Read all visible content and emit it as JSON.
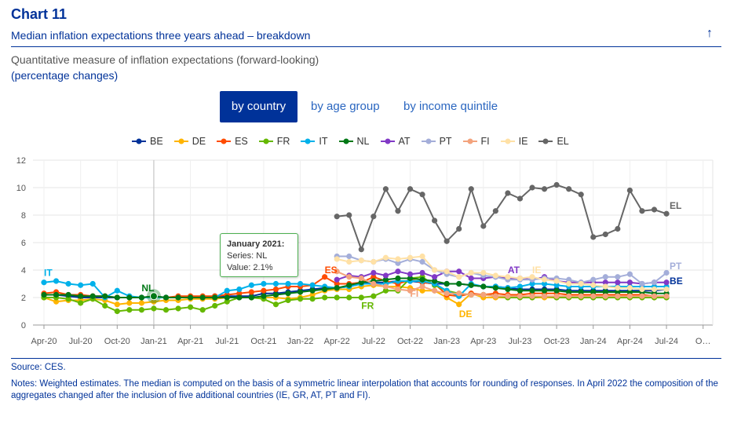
{
  "header": {
    "chart_number": "Chart 11",
    "title": "Median inflation expectations three years ahead – breakdown",
    "collapse_icon": "arrow-up-icon",
    "subtitle_line1": "Quantitative measure of inflation expectations (forward-looking)",
    "subtitle_line2": "(percentage changes)"
  },
  "tabs": [
    {
      "label": "by country",
      "active": true
    },
    {
      "label": "by age group",
      "active": false
    },
    {
      "label": "by income quintile",
      "active": false
    }
  ],
  "tooltip": {
    "title": "January 2021:",
    "series_line": "Series: NL",
    "value_line": "Value: 2.1%"
  },
  "footer": {
    "source": "Source: CES.",
    "notes": "Notes: Weighted estimates. The median is computed on the basis of a symmetric linear interpolation that accounts for rounding of responses. In April 2022 the composition of the aggregates changed after the inclusion of five additional countries (IE, GR, AT, PT and FI)."
  },
  "chart_data": {
    "type": "line",
    "ylim": [
      0,
      12
    ],
    "yticks": [
      "0",
      "2",
      "4",
      "6",
      "8",
      "10",
      "12"
    ],
    "x": [
      "Apr-20",
      "May-20",
      "Jun-20",
      "Jul-20",
      "Aug-20",
      "Sep-20",
      "Oct-20",
      "Nov-20",
      "Dec-20",
      "Jan-21",
      "Feb-21",
      "Mar-21",
      "Apr-21",
      "May-21",
      "Jun-21",
      "Jul-21",
      "Aug-21",
      "Sep-21",
      "Oct-21",
      "Nov-21",
      "Dec-21",
      "Jan-22",
      "Feb-22",
      "Mar-22",
      "Apr-22",
      "May-22",
      "Jun-22",
      "Jul-22",
      "Aug-22",
      "Sep-22",
      "Oct-22",
      "Nov-22",
      "Dec-22",
      "Jan-23",
      "Feb-23",
      "Mar-23",
      "Apr-23",
      "May-23",
      "Jun-23",
      "Jul-23",
      "Aug-23",
      "Sep-23",
      "Oct-23",
      "Nov-23",
      "Dec-23",
      "Jan-24",
      "Feb-24",
      "Mar-24",
      "Apr-24",
      "May-24",
      "Jun-24",
      "Jul-24"
    ],
    "xtick_labels": [
      "Apr-20",
      "Jul-20",
      "Oct-20",
      "Jan-21",
      "Apr-21",
      "Jul-21",
      "Oct-21",
      "Jan-22",
      "Apr-22",
      "Jul-22",
      "Oct-22",
      "Jan-23",
      "Apr-23",
      "Jul-23",
      "Oct-23",
      "Jan-24",
      "Apr-24",
      "Jul-24",
      "O…"
    ],
    "highlight_x": "Jan-21",
    "series": [
      {
        "name": "BE",
        "color": "#003299",
        "values": [
          2.2,
          2.2,
          2.1,
          2.0,
          2.0,
          2.0,
          2.0,
          2.0,
          2.0,
          2.1,
          2.0,
          2.0,
          2.0,
          2.0,
          2.1,
          2.1,
          2.1,
          2.1,
          2.3,
          2.3,
          2.4,
          2.5,
          2.6,
          2.7,
          2.7,
          2.8,
          3.0,
          3.1,
          3.1,
          3.2,
          3.2,
          3.1,
          3.0,
          3.0,
          3.0,
          2.9,
          2.8,
          2.8,
          2.7,
          2.6,
          2.6,
          2.6,
          2.6,
          2.5,
          2.5,
          2.5,
          2.5,
          2.5,
          2.5,
          2.5,
          2.5,
          2.6
        ],
        "end_label": "BE"
      },
      {
        "name": "DE",
        "color": "#ffb400",
        "values": [
          2.0,
          1.7,
          1.8,
          1.8,
          1.9,
          1.8,
          1.5,
          1.6,
          1.6,
          1.7,
          1.8,
          1.8,
          1.9,
          1.9,
          1.9,
          2.0,
          2.0,
          2.0,
          2.0,
          2.0,
          1.9,
          2.0,
          2.2,
          2.5,
          2.6,
          2.6,
          2.8,
          2.9,
          2.8,
          2.8,
          2.7,
          2.5,
          2.5,
          2.0,
          1.5,
          2.3,
          2.0,
          2.0,
          2.0,
          2.1,
          2.0,
          2.0,
          2.0,
          2.0,
          2.0,
          2.0,
          2.0,
          2.0,
          2.0,
          2.0,
          2.0,
          2.0
        ],
        "end_label": "DE"
      },
      {
        "name": "ES",
        "color": "#ff4b00",
        "values": [
          2.3,
          2.4,
          2.2,
          2.2,
          2.1,
          2.1,
          2.0,
          2.0,
          2.0,
          2.0,
          2.0,
          2.1,
          2.1,
          2.1,
          2.1,
          2.2,
          2.3,
          2.4,
          2.5,
          2.6,
          2.8,
          2.8,
          2.9,
          3.5,
          3.0,
          3.0,
          3.1,
          3.5,
          3.2,
          3.0,
          3.3,
          3.1,
          3.0,
          2.2,
          2.1,
          2.3,
          2.2,
          2.3,
          2.2,
          2.2,
          2.3,
          2.3,
          2.3,
          2.2,
          2.2,
          2.2,
          2.2,
          2.2,
          2.2,
          2.2,
          2.1,
          2.1
        ],
        "end_label": "ES"
      },
      {
        "name": "FR",
        "color": "#65b800",
        "values": [
          2.0,
          2.0,
          1.9,
          1.6,
          1.9,
          1.4,
          1.0,
          1.1,
          1.1,
          1.2,
          1.1,
          1.2,
          1.3,
          1.1,
          1.4,
          1.7,
          2.0,
          2.0,
          1.9,
          1.5,
          1.8,
          1.9,
          1.9,
          2.0,
          2.0,
          2.0,
          2.0,
          2.1,
          2.5,
          2.5,
          3.4,
          3.5,
          2.9,
          2.5,
          2.3,
          2.2,
          2.2,
          2.1,
          2.0,
          2.0,
          2.0,
          2.1,
          2.0,
          2.0,
          2.0,
          2.0,
          2.0,
          2.0,
          2.0,
          2.0,
          2.0,
          2.0
        ],
        "end_label": "FR"
      },
      {
        "name": "IT",
        "color": "#00b1ea",
        "values": [
          3.1,
          3.2,
          3.0,
          2.9,
          3.0,
          2.0,
          2.5,
          2.1,
          2.0,
          2.0,
          2.0,
          2.0,
          2.0,
          2.0,
          2.0,
          2.5,
          2.6,
          2.9,
          3.0,
          3.0,
          3.0,
          3.0,
          2.9,
          2.8,
          2.7,
          2.8,
          3.0,
          3.0,
          3.0,
          3.2,
          3.2,
          3.2,
          3.0,
          2.5,
          2.1,
          3.0,
          2.8,
          2.8,
          2.7,
          2.8,
          3.0,
          3.0,
          2.9,
          2.8,
          2.8,
          2.8,
          2.8,
          2.8,
          2.8,
          2.8,
          2.8,
          2.8
        ],
        "end_label": "IT"
      },
      {
        "name": "NL",
        "color": "#007816",
        "values": [
          2.2,
          2.2,
          2.2,
          2.1,
          2.1,
          2.1,
          2.0,
          2.0,
          2.0,
          2.1,
          2.0,
          2.0,
          2.0,
          2.0,
          2.0,
          2.0,
          2.0,
          2.0,
          2.1,
          2.2,
          2.3,
          2.4,
          2.5,
          2.6,
          2.7,
          2.9,
          3.1,
          3.2,
          3.3,
          3.4,
          3.4,
          3.3,
          3.2,
          3.0,
          3.0,
          2.9,
          2.8,
          2.7,
          2.6,
          2.5,
          2.5,
          2.5,
          2.5,
          2.4,
          2.4,
          2.4,
          2.4,
          2.4,
          2.4,
          2.4,
          2.3,
          2.3
        ],
        "end_label": "NL"
      },
      {
        "name": "AT",
        "color": "#8139c6",
        "values": [
          null,
          null,
          null,
          null,
          null,
          null,
          null,
          null,
          null,
          null,
          null,
          null,
          null,
          null,
          null,
          null,
          null,
          null,
          null,
          null,
          null,
          null,
          null,
          null,
          3.3,
          3.6,
          3.5,
          3.8,
          3.6,
          3.9,
          3.7,
          3.8,
          3.5,
          3.9,
          3.9,
          3.4,
          3.4,
          3.5,
          3.4,
          3.4,
          3.3,
          3.5,
          3.2,
          3.1,
          3.1,
          3.1,
          3.1,
          3.1,
          3.1,
          3.0,
          3.1,
          3.1
        ],
        "end_label": "AT"
      },
      {
        "name": "PT",
        "color": "#a4aed9",
        "values": [
          null,
          null,
          null,
          null,
          null,
          null,
          null,
          null,
          null,
          null,
          null,
          null,
          null,
          null,
          null,
          null,
          null,
          null,
          null,
          null,
          null,
          null,
          null,
          null,
          5.0,
          5.0,
          4.7,
          4.6,
          4.8,
          4.5,
          4.8,
          4.6,
          4.0,
          3.7,
          3.5,
          3.8,
          3.6,
          3.5,
          3.3,
          3.3,
          3.3,
          3.4,
          3.4,
          3.3,
          3.1,
          3.3,
          3.5,
          3.5,
          3.7,
          3.0,
          3.1,
          3.8
        ],
        "end_label": "PT"
      },
      {
        "name": "FI",
        "color": "#f3a37d",
        "values": [
          null,
          null,
          null,
          null,
          null,
          null,
          null,
          null,
          null,
          null,
          null,
          null,
          null,
          null,
          null,
          null,
          null,
          null,
          null,
          null,
          null,
          null,
          null,
          null,
          3.9,
          3.5,
          3.4,
          3.0,
          2.8,
          2.6,
          2.5,
          2.8,
          2.5,
          2.3,
          2.3,
          2.2,
          2.2,
          2.1,
          2.1,
          2.1,
          2.1,
          2.1,
          2.1,
          2.1,
          2.1,
          2.1,
          2.1,
          2.1,
          2.1,
          2.1,
          2.1,
          2.1
        ],
        "end_label": "FI"
      },
      {
        "name": "IE",
        "color": "#ffe1a6",
        "values": [
          null,
          null,
          null,
          null,
          null,
          null,
          null,
          null,
          null,
          null,
          null,
          null,
          null,
          null,
          null,
          null,
          null,
          null,
          null,
          null,
          null,
          null,
          null,
          null,
          4.8,
          4.6,
          4.7,
          4.6,
          4.9,
          4.8,
          4.9,
          5.0,
          4.0,
          3.9,
          3.5,
          3.8,
          3.8,
          3.6,
          3.5,
          3.4,
          3.5,
          3.3,
          3.2,
          3.0,
          3.0,
          2.9,
          2.8,
          2.7,
          2.7,
          2.6,
          2.6,
          2.6
        ],
        "end_label": "IE"
      },
      {
        "name": "EL",
        "color": "#666666",
        "values": [
          null,
          null,
          null,
          null,
          null,
          null,
          null,
          null,
          null,
          null,
          null,
          null,
          null,
          null,
          null,
          null,
          null,
          null,
          null,
          null,
          null,
          null,
          null,
          null,
          7.9,
          8.0,
          5.5,
          7.9,
          9.9,
          8.3,
          9.9,
          9.5,
          7.6,
          6.1,
          7.0,
          9.9,
          7.2,
          8.3,
          9.6,
          9.2,
          10.0,
          9.9,
          10.2,
          9.9,
          9.5,
          6.4,
          6.6,
          7.0,
          9.8,
          8.3,
          8.4,
          8.1
        ],
        "end_label": "EL"
      }
    ],
    "inline_labels": [
      {
        "text": "IT",
        "series": "IT",
        "x": "Apr-20",
        "y": 3.8
      },
      {
        "text": "NL",
        "series": "NL",
        "x": "Dec-20",
        "y": 2.7
      },
      {
        "text": "ES",
        "series": "ES",
        "x": "Mar-22",
        "y": 4.0
      },
      {
        "text": "FR",
        "series": "FR",
        "x": "Jun-22",
        "y": 1.4
      },
      {
        "text": "FI",
        "series": "FI",
        "x": "Oct-22",
        "y": 2.3
      },
      {
        "text": "DE",
        "series": "DE",
        "x": "Feb-23",
        "y": 0.8
      },
      {
        "text": "AT",
        "series": "AT",
        "x": "Jun-23",
        "y": 4.0
      },
      {
        "text": "IE",
        "series": "IE",
        "x": "Aug-23",
        "y": 4.0
      },
      {
        "text": "EL",
        "series": "EL",
        "x": "Jul-24",
        "y": 8.7
      },
      {
        "text": "PT",
        "series": "PT",
        "x": "Jul-24",
        "y": 4.3
      },
      {
        "text": "BE",
        "series": "BE",
        "x": "Jul-24",
        "y": 3.2
      }
    ]
  }
}
